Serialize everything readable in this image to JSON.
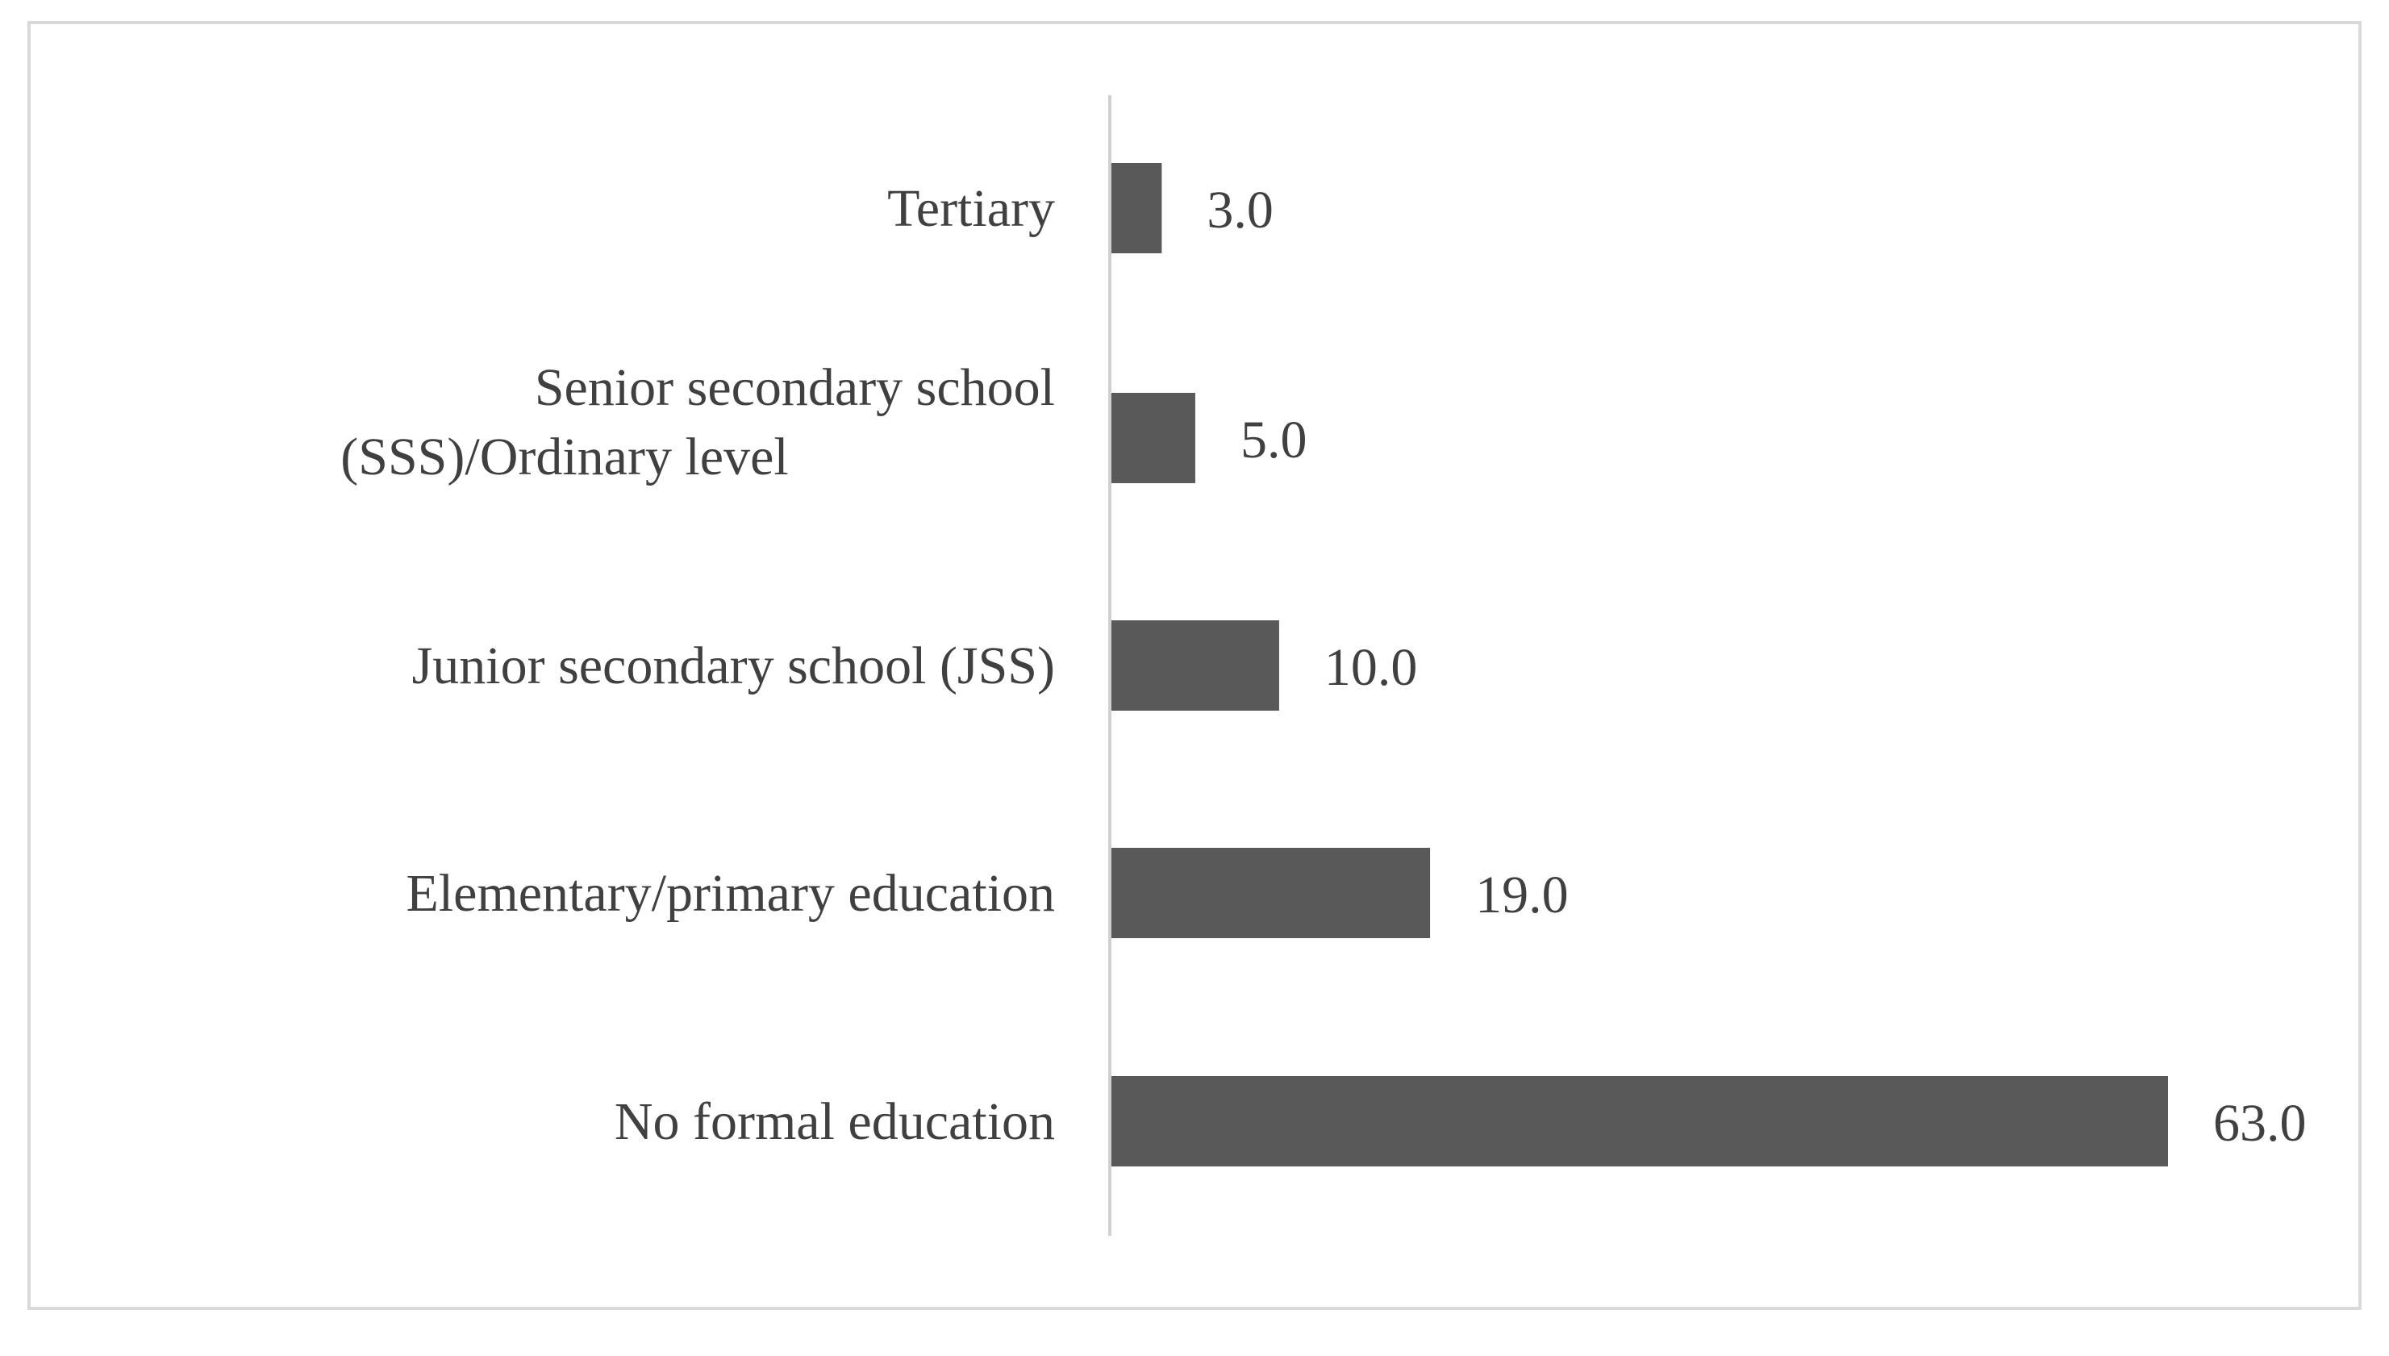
{
  "chart_data": {
    "type": "bar",
    "orientation": "horizontal",
    "categories": [
      "Tertiary",
      "Senior secondary school (SSS)/Ordinary level",
      "Junior secondary school (JSS)",
      "Elementary/primary education",
      "No formal education"
    ],
    "values": [
      3.0,
      5.0,
      10.0,
      19.0,
      63.0
    ],
    "value_labels": [
      "3.0",
      "5.0",
      "10.0",
      "19.0",
      "63.0"
    ],
    "title": "",
    "xlabel": "",
    "ylabel": "",
    "xlim": [
      0,
      63
    ],
    "grid": false,
    "legend": "none",
    "colors": {
      "bar": "#595959",
      "axis": "#d0d0d0",
      "text": "#404040",
      "frame": "#d9d9d9"
    }
  }
}
